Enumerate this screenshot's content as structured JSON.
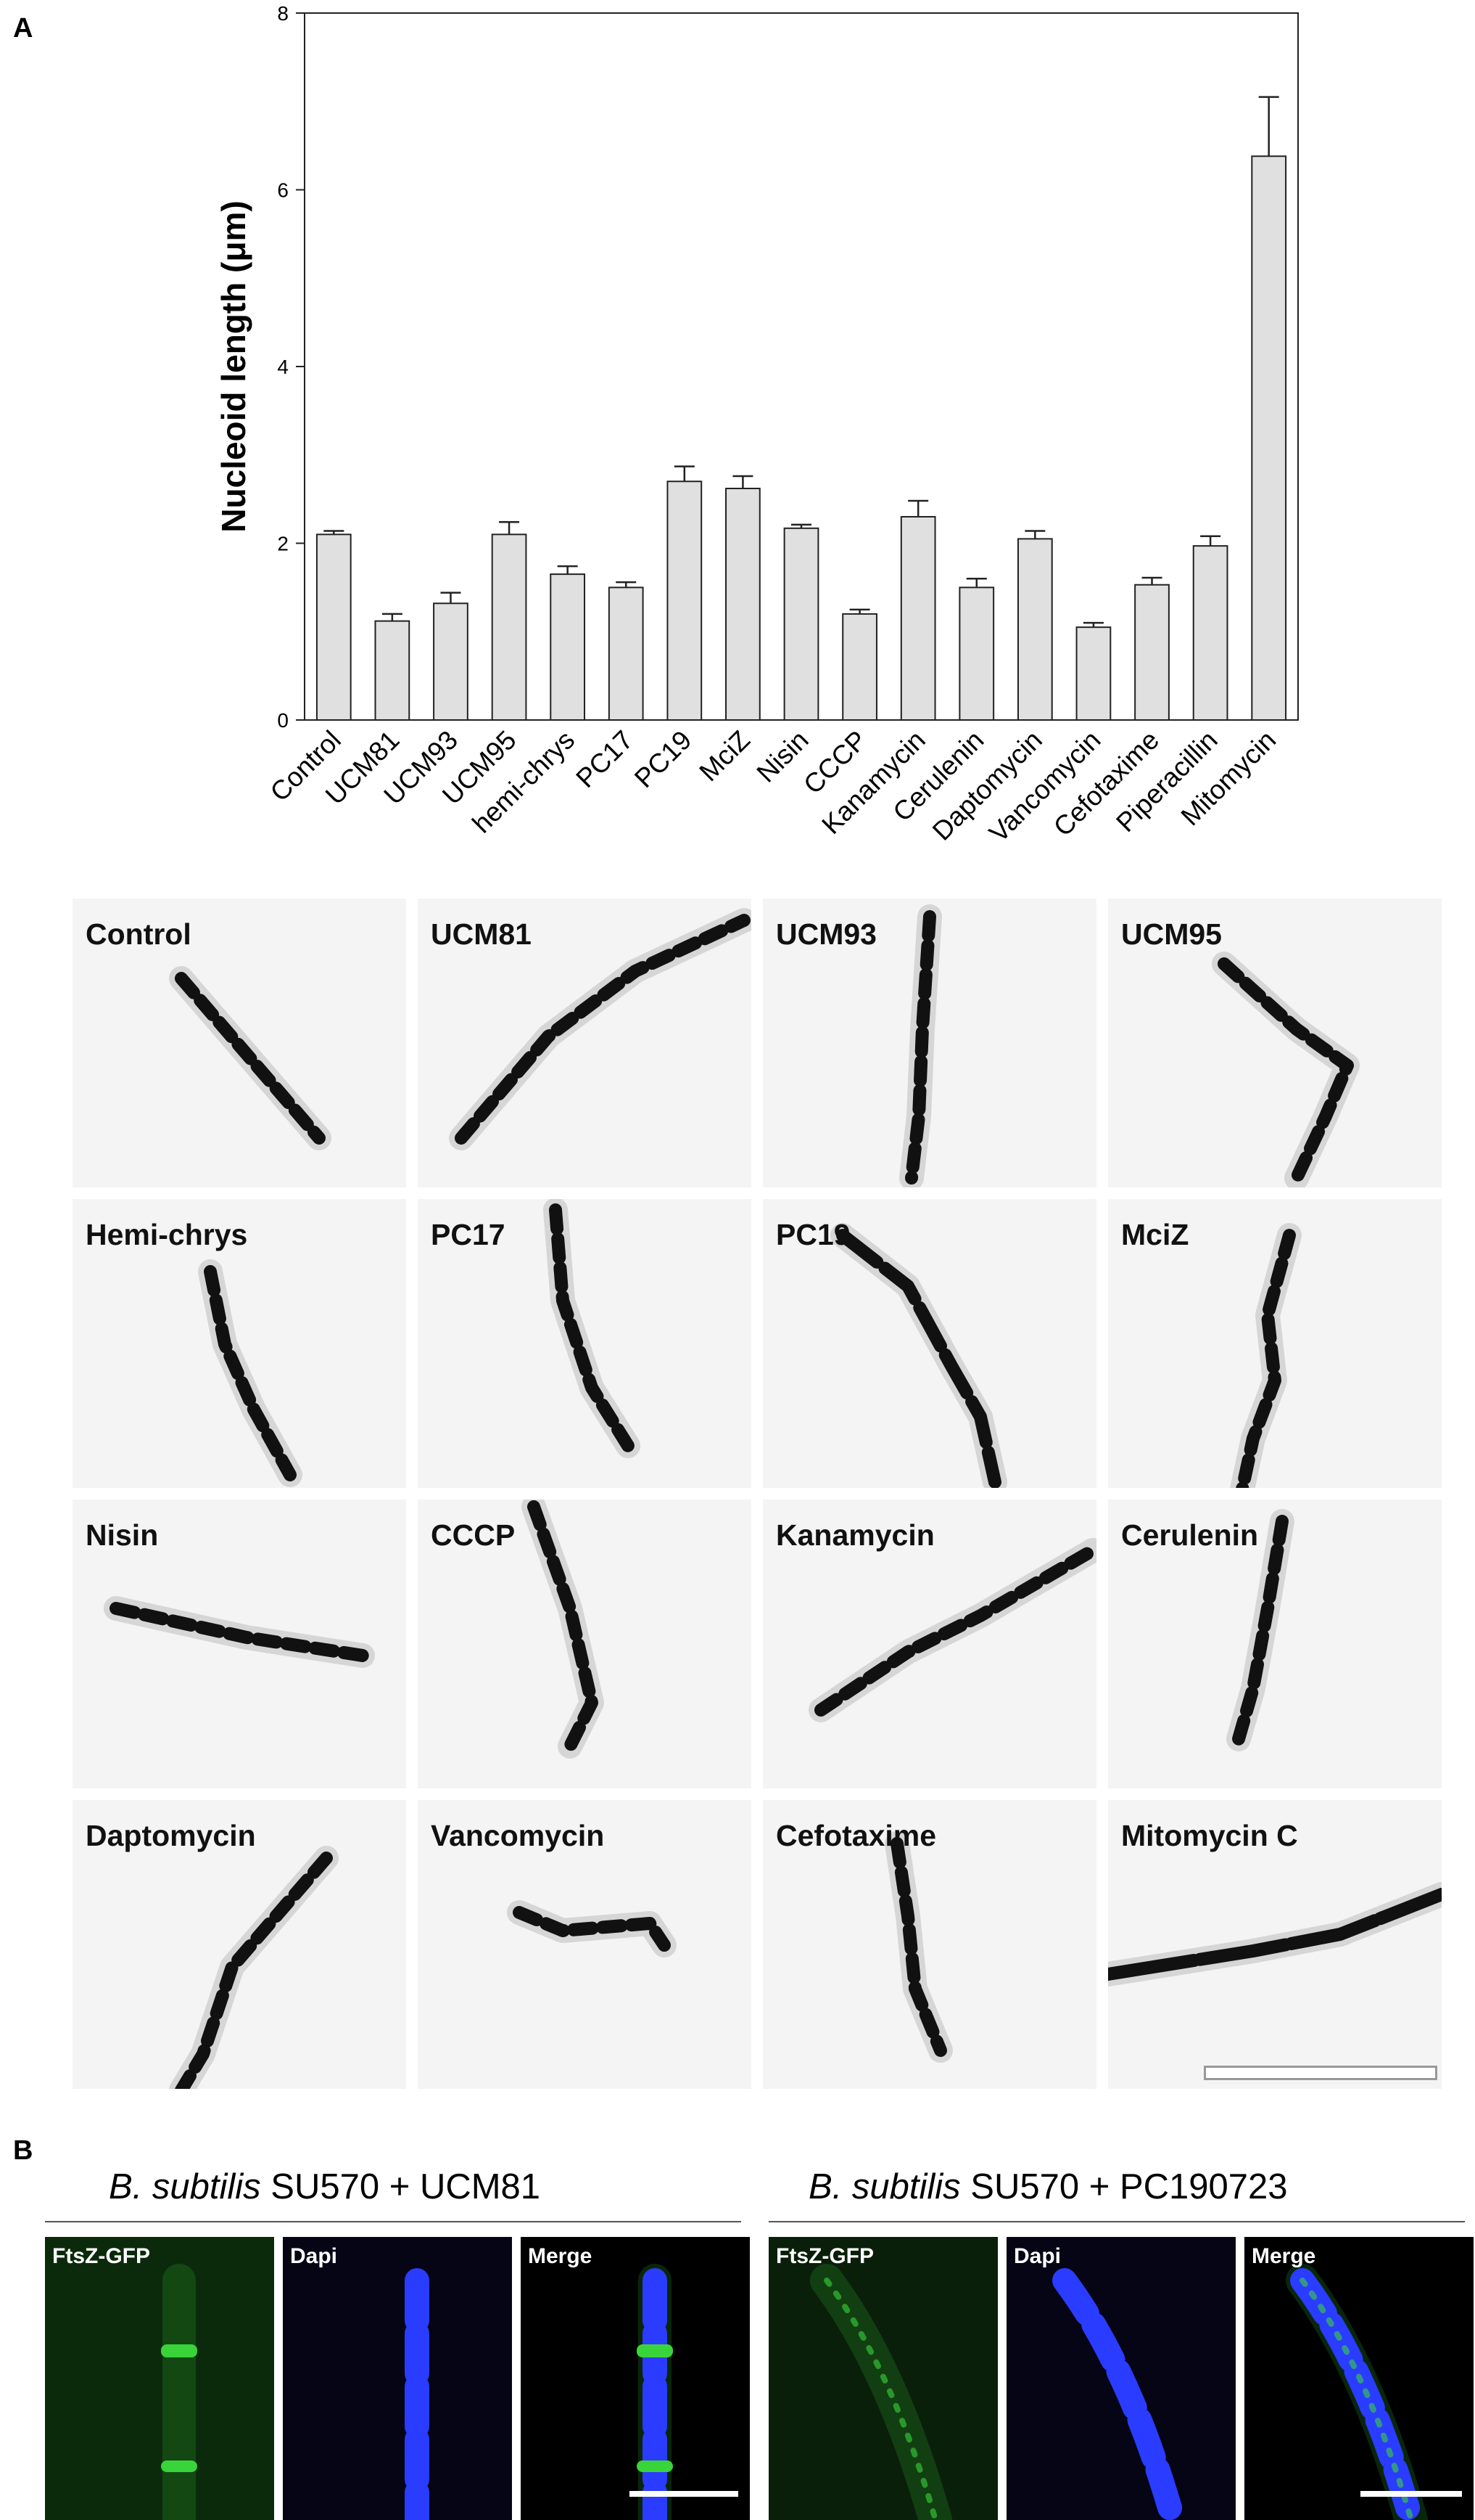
{
  "figure": {
    "panel_a_letter": "A",
    "panel_b_letter": "B"
  },
  "chart_data": {
    "type": "bar",
    "ylabel": "Nucleoid length (μm)",
    "ylim": [
      0,
      8
    ],
    "yticks": [
      0,
      2,
      4,
      6,
      8
    ],
    "categories": [
      "Control",
      "UCM81",
      "UCM93",
      "UCM95",
      "hemi-chrys",
      "PC17",
      "PC19",
      "MciZ",
      "Nisin",
      "CCCP",
      "Kanamycin",
      "Cerulenin",
      "Daptomycin",
      "Vancomycin",
      "Cefotaxime",
      "Piperacillin",
      "Mitomycin"
    ],
    "values": [
      2.1,
      1.12,
      1.32,
      2.1,
      1.65,
      1.5,
      2.7,
      2.62,
      2.17,
      1.2,
      2.3,
      1.5,
      2.05,
      1.05,
      1.53,
      1.97,
      6.38
    ],
    "errors": [
      0.04,
      0.08,
      0.12,
      0.14,
      0.09,
      0.06,
      0.17,
      0.14,
      0.04,
      0.05,
      0.18,
      0.1,
      0.09,
      0.05,
      0.08,
      0.11,
      0.67
    ],
    "bar_color": "#e0e0e0",
    "grid": false
  },
  "micrographs": [
    {
      "label": "Control"
    },
    {
      "label": "UCM81"
    },
    {
      "label": "UCM93"
    },
    {
      "label": "UCM95"
    },
    {
      "label": "Hemi-chrys"
    },
    {
      "label": "PC17"
    },
    {
      "label": "PC19"
    },
    {
      "label": "MciZ"
    },
    {
      "label": "Nisin"
    },
    {
      "label": "CCCP"
    },
    {
      "label": "Kanamycin"
    },
    {
      "label": "Cerulenin"
    },
    {
      "label": "Daptomycin"
    },
    {
      "label": "Vancomycin"
    },
    {
      "label": "Cefotaxime"
    },
    {
      "label": "Mitomycin C"
    }
  ],
  "panel_b": {
    "groups": [
      {
        "species": "B. subtilis",
        "strain_text": " SU570 + UCM81",
        "channels": [
          {
            "label": "FtsZ-GFP"
          },
          {
            "label": "Dapi"
          },
          {
            "label": "Merge"
          }
        ]
      },
      {
        "species": "B. subtilis",
        "strain_text": " SU570 + PC190723",
        "channels": [
          {
            "label": "FtsZ-GFP"
          },
          {
            "label": "Dapi"
          },
          {
            "label": "Merge"
          }
        ]
      }
    ]
  },
  "colors": {
    "gfp": "#39d43a",
    "dapi": "#2a3cff"
  }
}
